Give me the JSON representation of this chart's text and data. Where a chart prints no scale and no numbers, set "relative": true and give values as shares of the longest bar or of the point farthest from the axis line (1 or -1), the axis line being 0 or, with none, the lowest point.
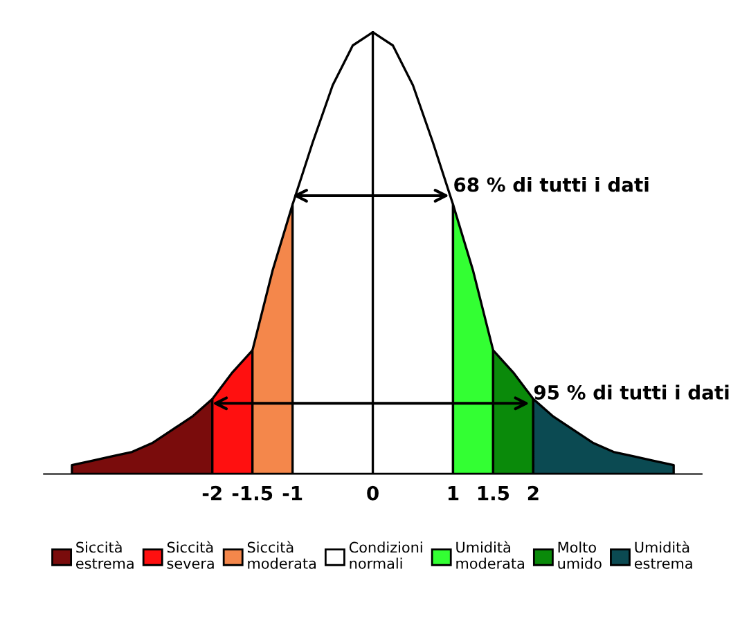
{
  "chart_data": {
    "type": "area",
    "relative": true,
    "series": [
      {
        "name": "Siccità\nestrema",
        "color": "#7a0c0c",
        "x": [
          -3.75,
          -3.5,
          -3.25,
          -3,
          -2.75,
          -2.5,
          -2.25,
          -2
        ],
        "values": [
          0.02,
          0.03,
          0.04,
          0.05,
          0.07,
          0.1,
          0.13,
          0.17
        ]
      },
      {
        "name": "Siccità\nsevera",
        "color": "#ff1010",
        "x": [
          -2,
          -1.75,
          -1.5
        ],
        "values": [
          0.17,
          0.23,
          0.28
        ]
      },
      {
        "name": "Siccità\nmoderata",
        "color": "#f4874b",
        "x": [
          -1.5,
          -1.25,
          -1
        ],
        "values": [
          0.28,
          0.46,
          0.61
        ]
      },
      {
        "name": "Condizioni\nnormali",
        "color": "#ffffff",
        "x": [
          -1,
          -0.75,
          -0.5,
          -0.25,
          0,
          0.25,
          0.5,
          0.75,
          1
        ],
        "values": [
          0.61,
          0.75,
          0.88,
          0.97,
          1,
          0.97,
          0.88,
          0.75,
          0.61
        ]
      },
      {
        "name": "Umidità\nmoderata",
        "color": "#33ff33",
        "x": [
          1,
          1.25,
          1.5
        ],
        "values": [
          0.61,
          0.46,
          0.28
        ]
      },
      {
        "name": "Molto\numido",
        "color": "#0a8a0a",
        "x": [
          1.5,
          1.75,
          2
        ],
        "values": [
          0.28,
          0.23,
          0.17
        ]
      },
      {
        "name": "Umidità\nestrema",
        "color": "#0b4a52",
        "x": [
          2,
          2.25,
          2.5,
          2.75,
          3,
          3.25,
          3.5,
          3.75
        ],
        "values": [
          0.17,
          0.13,
          0.1,
          0.07,
          0.05,
          0.04,
          0.03,
          0.02
        ]
      }
    ],
    "xlim": [
      -4.1,
      4.1
    ],
    "xticks": [
      -2,
      -1.5,
      -1,
      0,
      1,
      1.5,
      2
    ],
    "line_style": "solid",
    "legend": "bottom",
    "ref_lines": [
      {
        "axis": "x",
        "value": 0,
        "color": "#000000"
      }
    ],
    "annotations": [
      {
        "text": "68 % di tutti i dati",
        "x": 1,
        "y": 0.63
      },
      {
        "text": "95 % di tutti i dati",
        "x": 2,
        "y": 0.16
      }
    ]
  }
}
